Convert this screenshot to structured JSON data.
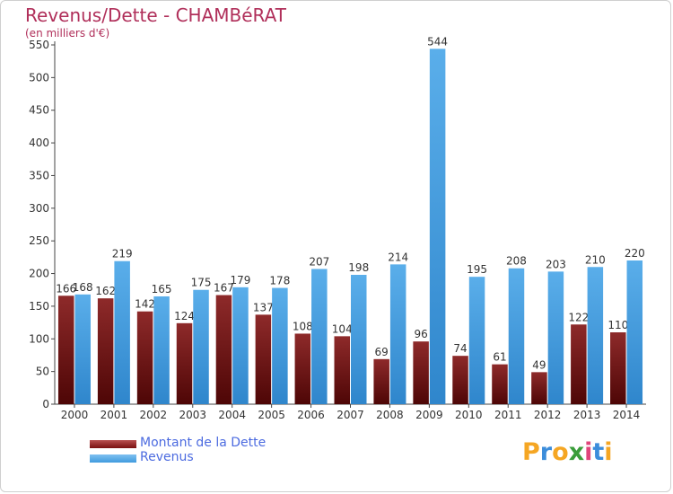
{
  "title": "Revenus/Dette - CHAMBéRAT",
  "subtitle": "(en milliers d'€)",
  "logo": {
    "text": "Proxiti",
    "letters": [
      "P",
      "r",
      "o",
      "x",
      "i",
      "t",
      "i"
    ],
    "colors": [
      "#f5a623",
      "#3c8ddb",
      "#f5a623",
      "#3a9d3a",
      "#e0457b",
      "#3c8ddb",
      "#f5a623"
    ]
  },
  "colors": {
    "dette": "#7a1010",
    "revenus": "#3f9bde",
    "title": "#b02f5a",
    "legend_text": "#4c6be0"
  },
  "chart_data": {
    "type": "bar",
    "categories": [
      "2000",
      "2001",
      "2002",
      "2003",
      "2004",
      "2005",
      "2006",
      "2007",
      "2008",
      "2009",
      "2010",
      "2011",
      "2012",
      "2013",
      "2014"
    ],
    "series": [
      {
        "name": "Montant de la Dette",
        "values": [
          166,
          162,
          142,
          124,
          167,
          137,
          108,
          104,
          69,
          96,
          74,
          61,
          49,
          122,
          110
        ]
      },
      {
        "name": "Revenus",
        "values": [
          168,
          219,
          165,
          175,
          179,
          178,
          207,
          198,
          214,
          544,
          195,
          208,
          203,
          210,
          220
        ]
      }
    ],
    "ylim": [
      0,
      550
    ],
    "yticks": [
      0,
      50,
      100,
      150,
      200,
      250,
      300,
      350,
      400,
      450,
      500,
      550
    ],
    "grid": false,
    "legend": "bottom-left"
  }
}
